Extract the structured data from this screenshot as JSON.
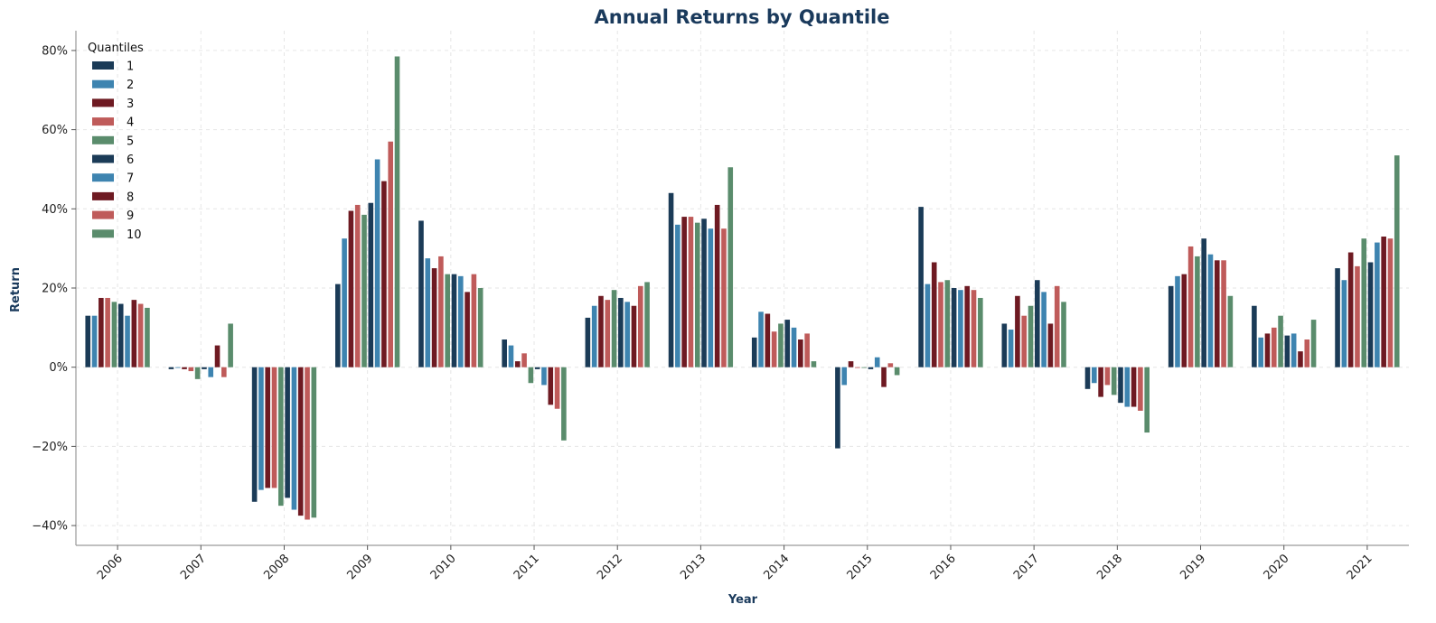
{
  "chart_data": {
    "type": "bar",
    "title": "Annual Returns by Quantile",
    "xlabel": "Year",
    "ylabel": "Return",
    "ylim": [
      -0.45,
      0.85
    ],
    "yticks": [
      -0.4,
      -0.2,
      0,
      0.2,
      0.4,
      0.6,
      0.8
    ],
    "ytick_labels": [
      "−40%",
      "−20%",
      "0%",
      "20%",
      "40%",
      "60%",
      "80%"
    ],
    "grid": true,
    "legend": {
      "title": "Quantiles",
      "position": "top-left"
    },
    "categories": [
      "2006",
      "2007",
      "2008",
      "2009",
      "2010",
      "2011",
      "2012",
      "2013",
      "2014",
      "2015",
      "2016",
      "2017",
      "2018",
      "2019",
      "2020",
      "2021"
    ],
    "series": [
      {
        "name": "1",
        "color": "#1b3b57",
        "values": [
          0.13,
          -0.005,
          -0.34,
          0.21,
          0.37,
          0.07,
          0.125,
          0.44,
          0.075,
          -0.205,
          0.405,
          0.11,
          -0.055,
          0.205,
          0.155,
          0.25
        ]
      },
      {
        "name": "2",
        "color": "#3e84b0",
        "values": [
          0.13,
          0.0,
          -0.31,
          0.325,
          0.275,
          0.055,
          0.155,
          0.36,
          0.14,
          -0.045,
          0.21,
          0.095,
          -0.04,
          0.23,
          0.075,
          0.22
        ]
      },
      {
        "name": "3",
        "color": "#6e1a22",
        "values": [
          0.175,
          -0.005,
          -0.305,
          0.395,
          0.25,
          0.015,
          0.18,
          0.38,
          0.135,
          0.015,
          0.265,
          0.18,
          -0.075,
          0.235,
          0.085,
          0.29
        ]
      },
      {
        "name": "4",
        "color": "#bf5b5a",
        "values": [
          0.175,
          -0.01,
          -0.305,
          0.41,
          0.28,
          0.035,
          0.17,
          0.38,
          0.09,
          0.0,
          0.215,
          0.13,
          -0.045,
          0.305,
          0.1,
          0.255
        ]
      },
      {
        "name": "5",
        "color": "#5a8c6c",
        "values": [
          0.165,
          -0.03,
          -0.35,
          0.385,
          0.235,
          -0.04,
          0.195,
          0.365,
          0.11,
          0.0,
          0.22,
          0.155,
          -0.07,
          0.28,
          0.13,
          0.325
        ]
      },
      {
        "name": "6",
        "color": "#1b3b57",
        "values": [
          0.16,
          -0.005,
          -0.33,
          0.415,
          0.235,
          -0.005,
          0.175,
          0.375,
          0.12,
          -0.005,
          0.2,
          0.22,
          -0.09,
          0.325,
          0.08,
          0.265
        ]
      },
      {
        "name": "7",
        "color": "#3e84b0",
        "values": [
          0.13,
          -0.025,
          -0.36,
          0.525,
          0.23,
          -0.045,
          0.165,
          0.35,
          0.1,
          0.025,
          0.195,
          0.19,
          -0.1,
          0.285,
          0.085,
          0.315
        ]
      },
      {
        "name": "8",
        "color": "#6e1a22",
        "values": [
          0.17,
          0.055,
          -0.375,
          0.47,
          0.19,
          -0.095,
          0.155,
          0.41,
          0.07,
          -0.05,
          0.205,
          0.11,
          -0.1,
          0.27,
          0.04,
          0.33
        ]
      },
      {
        "name": "9",
        "color": "#bf5b5a",
        "values": [
          0.16,
          -0.025,
          -0.385,
          0.57,
          0.235,
          -0.105,
          0.205,
          0.35,
          0.085,
          0.01,
          0.195,
          0.205,
          -0.11,
          0.27,
          0.07,
          0.325
        ]
      },
      {
        "name": "10",
        "color": "#5a8c6c",
        "values": [
          0.15,
          0.11,
          -0.38,
          0.785,
          0.2,
          -0.185,
          0.215,
          0.505,
          0.015,
          -0.02,
          0.175,
          0.165,
          -0.165,
          0.18,
          0.12,
          0.535
        ]
      }
    ]
  }
}
